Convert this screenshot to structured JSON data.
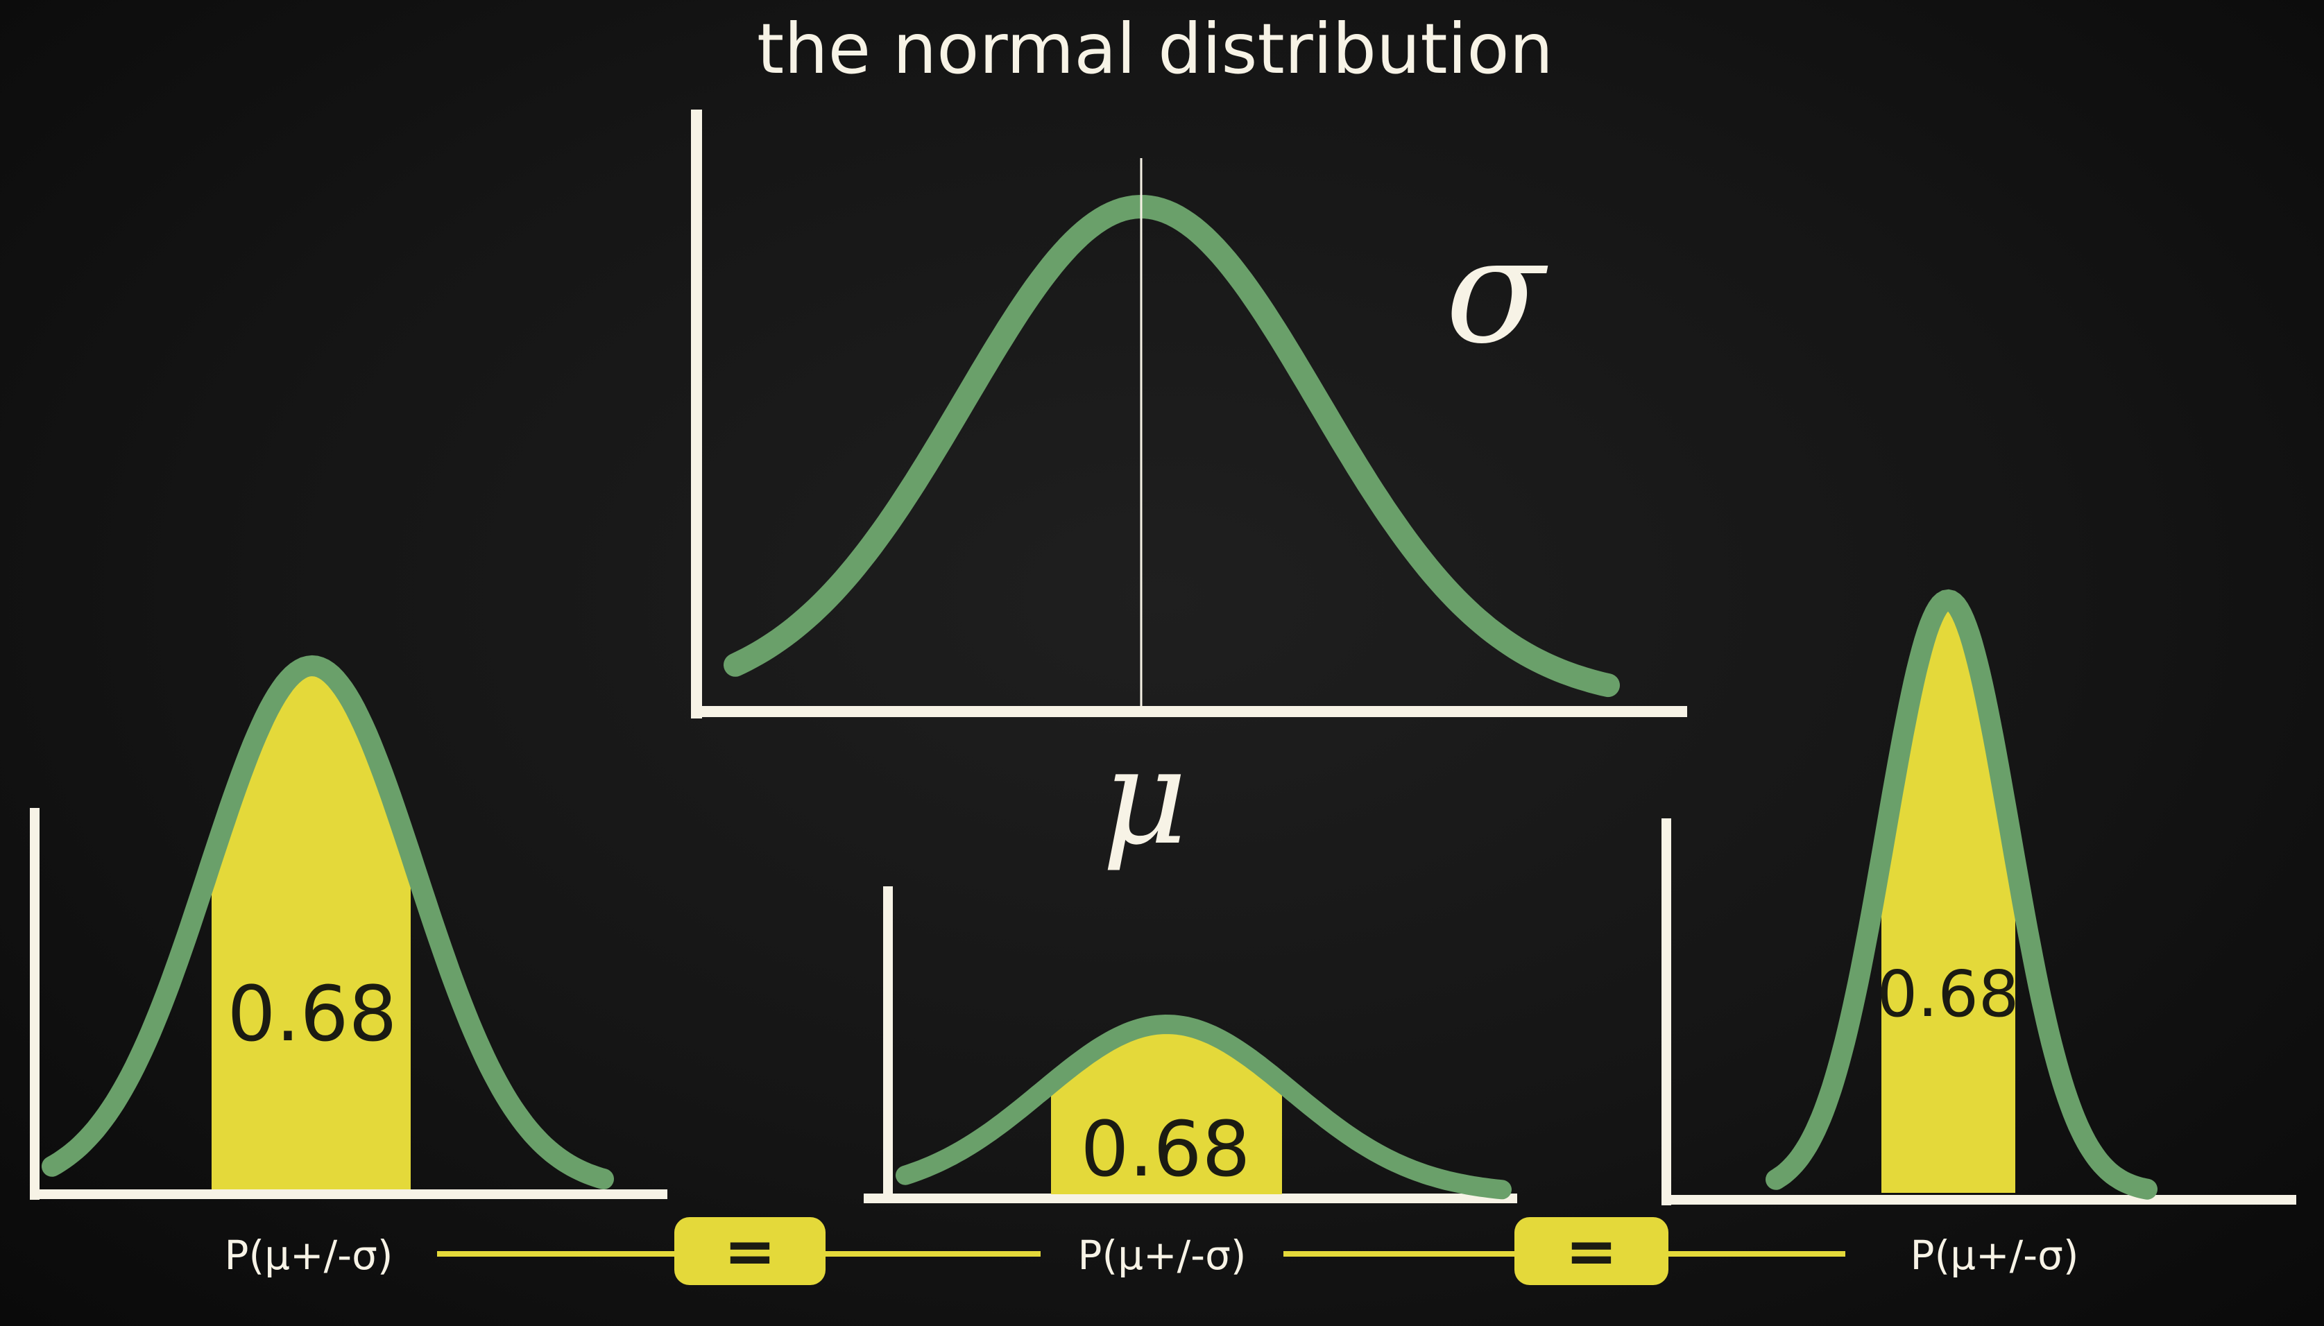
{
  "title": "the normal distribution",
  "main_chart": {
    "mean_symbol": "μ",
    "sigma_symbol": "σ"
  },
  "panels": [
    {
      "area_label": "0.68",
      "caption": "P(μ+/-σ)"
    },
    {
      "area_label": "0.68",
      "caption": "P(μ+/-σ)"
    },
    {
      "area_label": "0.68",
      "caption": "P(μ+/-σ)"
    }
  ],
  "equals": [
    "=",
    "="
  ],
  "colors": {
    "background": "#141414",
    "chalk": "#f7f3e6",
    "curve": "#6aa06a",
    "fill": "#e4d93a"
  }
}
